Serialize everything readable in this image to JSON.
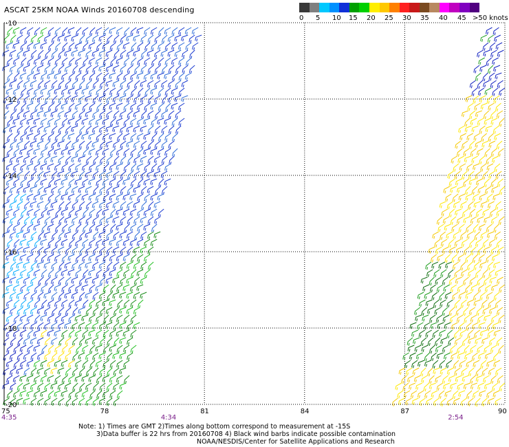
{
  "title": "ASCAT 25KM NOAA Winds 20160708 descending",
  "legend": {
    "colors": [
      "#3a3a3a",
      "#808080",
      "#00c8ff",
      "#0090ff",
      "#1030d8",
      "#00a000",
      "#00d000",
      "#ffee00",
      "#ffc800",
      "#ff8000",
      "#ff2020",
      "#c81818",
      "#7a4a20",
      "#b88860",
      "#ff00ff",
      "#c000c0",
      "#8000c0",
      "#500080"
    ],
    "labels": [
      "0",
      "5",
      "10",
      "15",
      "20",
      "25",
      "30",
      "35",
      "40",
      "45",
      ">50 knots"
    ]
  },
  "map": {
    "lon_range": [
      75,
      90
    ],
    "lat_range": [
      -20,
      -10
    ],
    "lat_labels": [
      "-10",
      "-12",
      "-14",
      "-16",
      "-18",
      "-20"
    ],
    "lon_labels": [
      "75",
      "78",
      "81",
      "84",
      "87",
      "90"
    ],
    "pass_times": [
      {
        "label": "4:35",
        "lon": 75
      },
      {
        "label": "4:34",
        "lon": 79.9
      },
      {
        "label": "2:54",
        "lon": 88.5
      }
    ]
  },
  "notes": {
    "line1": "Note: 1) Times are GMT 2)Times along bottom correspond to measurement at -15S",
    "line2": "3)Data buffer is 22 hrs from 20160708 4) Black wind barbs indicate possible contamination",
    "line3": "NOAA/NESDIS/Center for Satellite Applications and Research"
  }
}
